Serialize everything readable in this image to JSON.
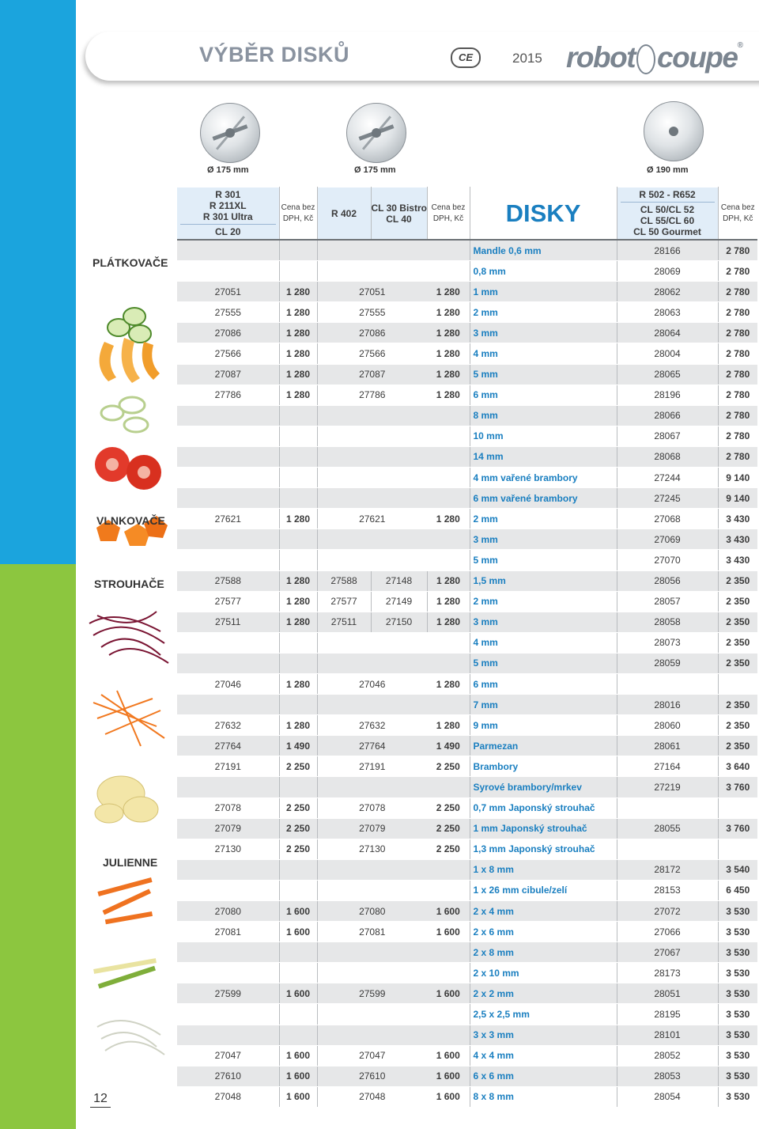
{
  "header": {
    "title": "VÝBĚR DISKŮ",
    "ce_mark": "CE",
    "year": "2015",
    "brand_left": "robot",
    "brand_right": "coupe",
    "brand_reg": "®"
  },
  "discs": [
    {
      "label": "Ø 175 mm"
    },
    {
      "label": "Ø 175 mm"
    },
    {
      "label": "Ø 190 mm"
    }
  ],
  "table_header": {
    "col1": [
      "R 301",
      "R 211XL",
      "R 301 Ultra"
    ],
    "col1_bottom": "CL 20",
    "price_line1": "Cena bez",
    "price_line2": "DPH, Kč",
    "col3": "R 402",
    "col4": [
      "CL 30 Bistro",
      "CL 40"
    ],
    "center": "DISKY",
    "col7_top": "R 502 - R652",
    "col7_bottom": [
      "CL 50/CL 52",
      "CL 55/CL 60",
      "CL 50 Gourmet"
    ]
  },
  "categories": [
    "PLÁTKOVAČE",
    "VLNKOVAČE",
    "STROUHAČE",
    "JULIENNE"
  ],
  "rows": [
    {
      "c1": "",
      "p1": "",
      "c3": "",
      "c4": "",
      "p2": "",
      "desc": "Mandle 0,6 mm",
      "c7": "28166",
      "p3": "2 780"
    },
    {
      "c1": "",
      "p1": "",
      "c3": "",
      "c4": "",
      "p2": "",
      "desc": "0,8 mm",
      "c7": "28069",
      "p3": "2 780"
    },
    {
      "c1": "27051",
      "p1": "1 280",
      "c3": "27051",
      "c4": "",
      "p2": "1 280",
      "desc": "1 mm",
      "c7": "28062",
      "p3": "2 780"
    },
    {
      "c1": "27555",
      "p1": "1 280",
      "c3": "27555",
      "c4": "",
      "p2": "1 280",
      "desc": "2 mm",
      "c7": "28063",
      "p3": "2 780"
    },
    {
      "c1": "27086",
      "p1": "1 280",
      "c3": "27086",
      "c4": "",
      "p2": "1 280",
      "desc": "3 mm",
      "c7": "28064",
      "p3": "2 780"
    },
    {
      "c1": "27566",
      "p1": "1 280",
      "c3": "27566",
      "c4": "",
      "p2": "1 280",
      "desc": "4 mm",
      "c7": "28004",
      "p3": "2 780"
    },
    {
      "c1": "27087",
      "p1": "1 280",
      "c3": "27087",
      "c4": "",
      "p2": "1 280",
      "desc": "5 mm",
      "c7": "28065",
      "p3": "2 780"
    },
    {
      "c1": "27786",
      "p1": "1 280",
      "c3": "27786",
      "c4": "",
      "p2": "1 280",
      "desc": "6 mm",
      "c7": "28196",
      "p3": "2 780"
    },
    {
      "c1": "",
      "p1": "",
      "c3": "",
      "c4": "",
      "p2": "",
      "desc": "8 mm",
      "c7": "28066",
      "p3": "2 780"
    },
    {
      "c1": "",
      "p1": "",
      "c3": "",
      "c4": "",
      "p2": "",
      "desc": "10 mm",
      "c7": "28067",
      "p3": "2 780"
    },
    {
      "c1": "",
      "p1": "",
      "c3": "",
      "c4": "",
      "p2": "",
      "desc": "14 mm",
      "c7": "28068",
      "p3": "2 780"
    },
    {
      "c1": "",
      "p1": "",
      "c3": "",
      "c4": "",
      "p2": "",
      "desc": "4 mm vařené brambory",
      "c7": "27244",
      "p3": "9 140"
    },
    {
      "c1": "",
      "p1": "",
      "c3": "",
      "c4": "",
      "p2": "",
      "desc": "6 mm vařené brambory",
      "c7": "27245",
      "p3": "9 140"
    },
    {
      "c1": "27621",
      "p1": "1 280",
      "c3": "27621",
      "c4": "",
      "p2": "1 280",
      "desc": "2 mm",
      "c7": "27068",
      "p3": "3 430"
    },
    {
      "c1": "",
      "p1": "",
      "c3": "",
      "c4": "",
      "p2": "",
      "desc": "3 mm",
      "c7": "27069",
      "p3": "3 430"
    },
    {
      "c1": "",
      "p1": "",
      "c3": "",
      "c4": "",
      "p2": "",
      "desc": "5 mm",
      "c7": "27070",
      "p3": "3 430"
    },
    {
      "c1": "27588",
      "p1": "1 280",
      "c3": "27588",
      "c4": "27148",
      "p2": "1 280",
      "desc": "1,5 mm",
      "c7": "28056",
      "p3": "2 350"
    },
    {
      "c1": "27577",
      "p1": "1 280",
      "c3": "27577",
      "c4": "27149",
      "p2": "1 280",
      "desc": "2 mm",
      "c7": "28057",
      "p3": "2 350"
    },
    {
      "c1": "27511",
      "p1": "1 280",
      "c3": "27511",
      "c4": "27150",
      "p2": "1 280",
      "desc": "3 mm",
      "c7": "28058",
      "p3": "2 350"
    },
    {
      "c1": "",
      "p1": "",
      "c3": "",
      "c4": "",
      "p2": "",
      "desc": "4 mm",
      "c7": "28073",
      "p3": "2 350"
    },
    {
      "c1": "",
      "p1": "",
      "c3": "",
      "c4": "",
      "p2": "",
      "desc": "5 mm",
      "c7": "28059",
      "p3": "2 350"
    },
    {
      "c1": "27046",
      "p1": "1 280",
      "c3": "27046",
      "c4": "",
      "p2": "1 280",
      "desc": "6 mm",
      "c7": "",
      "p3": ""
    },
    {
      "c1": "",
      "p1": "",
      "c3": "",
      "c4": "",
      "p2": "",
      "desc": "7 mm",
      "c7": "28016",
      "p3": "2 350"
    },
    {
      "c1": "27632",
      "p1": "1 280",
      "c3": "27632",
      "c4": "",
      "p2": "1 280",
      "desc": "9 mm",
      "c7": "28060",
      "p3": "2 350"
    },
    {
      "c1": "27764",
      "p1": "1 490",
      "c3": "27764",
      "c4": "",
      "p2": "1 490",
      "desc": "Parmezan",
      "c7": "28061",
      "p3": "2 350"
    },
    {
      "c1": "27191",
      "p1": "2 250",
      "c3": "27191",
      "c4": "",
      "p2": "2 250",
      "desc": "Brambory",
      "c7": "27164",
      "p3": "3 640"
    },
    {
      "c1": "",
      "p1": "",
      "c3": "",
      "c4": "",
      "p2": "",
      "desc": "Syrové brambory/mrkev",
      "c7": "27219",
      "p3": "3 760"
    },
    {
      "c1": "27078",
      "p1": "2 250",
      "c3": "27078",
      "c4": "",
      "p2": "2 250",
      "desc": "0,7 mm Japonský strouhač",
      "c7": "",
      "p3": ""
    },
    {
      "c1": "27079",
      "p1": "2 250",
      "c3": "27079",
      "c4": "",
      "p2": "2 250",
      "desc": "1 mm Japonský strouhač",
      "c7": "28055",
      "p3": "3 760"
    },
    {
      "c1": "27130",
      "p1": "2 250",
      "c3": "27130",
      "c4": "",
      "p2": "2 250",
      "desc": "1,3 mm Japonský strouhač",
      "c7": "",
      "p3": ""
    },
    {
      "c1": "",
      "p1": "",
      "c3": "",
      "c4": "",
      "p2": "",
      "desc": "1 x 8 mm",
      "c7": "28172",
      "p3": "3 540"
    },
    {
      "c1": "",
      "p1": "",
      "c3": "",
      "c4": "",
      "p2": "",
      "desc": "1 x 26 mm cibule/zelí",
      "c7": "28153",
      "p3": "6 450"
    },
    {
      "c1": "27080",
      "p1": "1 600",
      "c3": "27080",
      "c4": "",
      "p2": "1 600",
      "desc": "2 x 4 mm",
      "c7": "27072",
      "p3": "3 530"
    },
    {
      "c1": "27081",
      "p1": "1 600",
      "c3": "27081",
      "c4": "",
      "p2": "1 600",
      "desc": "2 x 6 mm",
      "c7": "27066",
      "p3": "3 530"
    },
    {
      "c1": "",
      "p1": "",
      "c3": "",
      "c4": "",
      "p2": "",
      "desc": "2 x 8 mm",
      "c7": "27067",
      "p3": "3 530"
    },
    {
      "c1": "",
      "p1": "",
      "c3": "",
      "c4": "",
      "p2": "",
      "desc": "2 x 10 mm",
      "c7": "28173",
      "p3": "3 530"
    },
    {
      "c1": "27599",
      "p1": "1 600",
      "c3": "27599",
      "c4": "",
      "p2": "1 600",
      "desc": "2 x 2 mm",
      "c7": "28051",
      "p3": "3 530"
    },
    {
      "c1": "",
      "p1": "",
      "c3": "",
      "c4": "",
      "p2": "",
      "desc": "2,5 x 2,5 mm",
      "c7": "28195",
      "p3": "3 530"
    },
    {
      "c1": "",
      "p1": "",
      "c3": "",
      "c4": "",
      "p2": "",
      "desc": "3 x 3 mm",
      "c7": "28101",
      "p3": "3 530"
    },
    {
      "c1": "27047",
      "p1": "1 600",
      "c3": "27047",
      "c4": "",
      "p2": "1 600",
      "desc": "4 x 4 mm",
      "c7": "28052",
      "p3": "3 530"
    },
    {
      "c1": "27610",
      "p1": "1 600",
      "c3": "27610",
      "c4": "",
      "p2": "1 600",
      "desc": "6 x 6 mm",
      "c7": "28053",
      "p3": "3 530"
    },
    {
      "c1": "27048",
      "p1": "1 600",
      "c3": "27048",
      "c4": "",
      "p2": "1 600",
      "desc": "8 x 8 mm",
      "c7": "28054",
      "p3": "3 530"
    }
  ],
  "page_number": "12"
}
